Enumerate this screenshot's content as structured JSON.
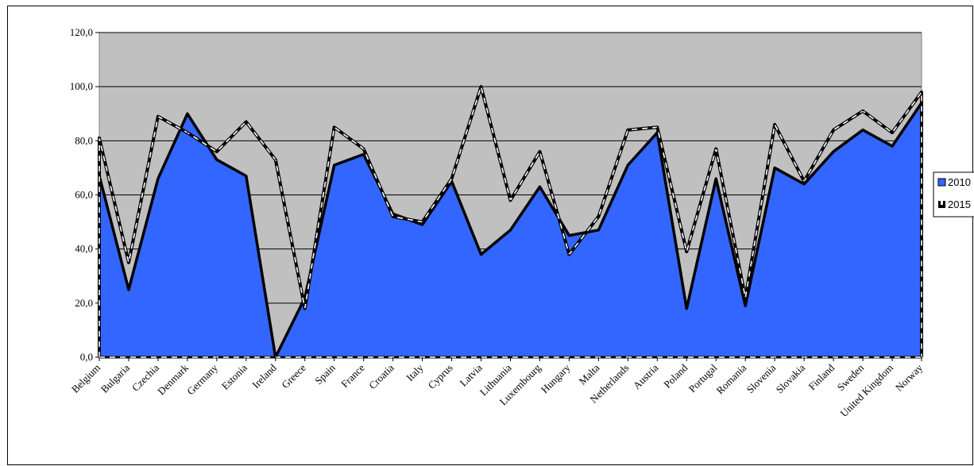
{
  "chart_data": {
    "type": "area",
    "title": "",
    "xlabel": "",
    "ylabel": "",
    "ylim": [
      0,
      120
    ],
    "yticks": [
      "0,0",
      "20,0",
      "40,0",
      "60,0",
      "80,0",
      "100,0",
      "120,0"
    ],
    "grid": true,
    "legend_position": "right",
    "categories": [
      "Belgium",
      "Bulgaria",
      "Czechia",
      "Denmark",
      "Germany",
      "Estonia",
      "Ireland",
      "Greece",
      "Spain",
      "France",
      "Croatia",
      "Italy",
      "Cyprus",
      "Latvia",
      "Lithuania",
      "Luxembourg",
      "Hungary",
      "Malta",
      "Netherlands",
      "Austria",
      "Poland",
      "Portugal",
      "Romania",
      "Slovenia",
      "Slovakia",
      "Finland",
      "Sweden",
      "United Kingdom",
      "Norway"
    ],
    "series": [
      {
        "name": "2010",
        "style": "filled-area",
        "color": "#3366ff",
        "values": [
          67,
          25,
          66,
          90,
          73,
          67,
          0,
          22,
          71,
          75,
          53,
          49,
          65,
          38,
          47,
          63,
          45,
          47,
          71,
          83,
          18,
          66,
          19,
          70,
          64,
          76,
          84,
          78,
          94
        ]
      },
      {
        "name": "2015",
        "style": "dashed-line",
        "color": "#000000",
        "values": [
          81,
          35,
          89,
          83,
          76,
          87,
          73,
          18,
          85,
          77,
          52,
          50,
          66,
          100,
          58,
          76,
          38,
          52,
          84,
          85,
          39,
          77,
          22,
          86,
          65,
          84,
          91,
          83,
          98
        ]
      }
    ],
    "plot_background": "#c0c0c0"
  }
}
